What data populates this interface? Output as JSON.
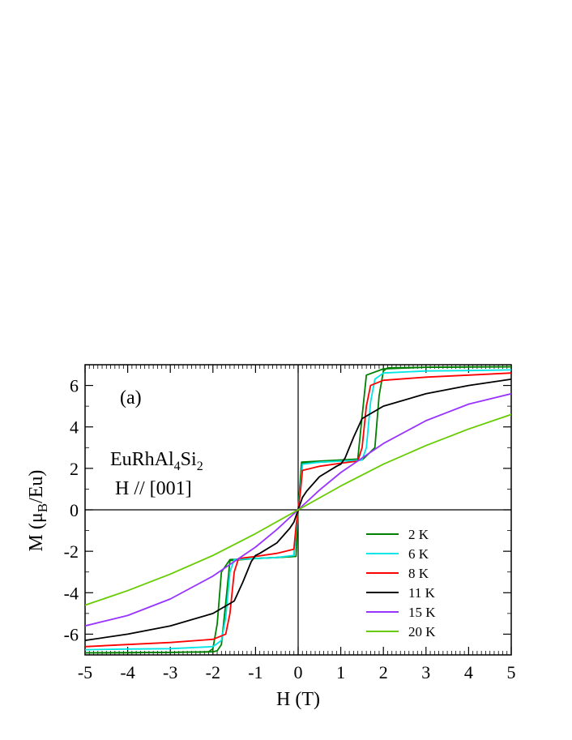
{
  "chart_data": {
    "type": "line",
    "panel_label": "(a)",
    "annotation": {
      "compound": {
        "base": "EuRhAl",
        "sub1": "4",
        "mid": "Si",
        "sub2": "2"
      },
      "field_direction": "H // [001]"
    },
    "xlabel": "H (T)",
    "ylabel": {
      "prefix": "M (μ",
      "sub": "B",
      "suffix": "/Eu)"
    },
    "xlim": [
      -5,
      5
    ],
    "ylim": [
      -7,
      7
    ],
    "xticks": [
      -5,
      -4,
      -3,
      -2,
      -1,
      0,
      1,
      2,
      3,
      4,
      5
    ],
    "yticks": [
      -6,
      -4,
      -2,
      0,
      2,
      4,
      6
    ],
    "zero_lines": true,
    "grid": false,
    "legend_position": "bottom-right",
    "series": [
      {
        "name": "2 K",
        "color": "#008000",
        "x": [
          -5,
          -4,
          -3,
          -2.1,
          -2.0,
          -1.9,
          -1.8,
          -1.6,
          -0.5,
          -0.1,
          -0.05,
          0,
          0.05,
          0.1,
          0.5,
          1.0,
          1.5,
          1.8,
          1.9,
          2.0,
          2.1,
          3,
          4,
          5
        ],
        "y": [
          -6.9,
          -6.9,
          -6.88,
          -6.85,
          -6.7,
          -5.5,
          -3.0,
          -2.4,
          -2.3,
          -2.25,
          -1.0,
          0,
          1.0,
          2.25,
          2.3,
          2.35,
          2.4,
          3.0,
          5.5,
          6.7,
          6.85,
          6.88,
          6.9,
          6.9
        ],
        "return_x": [
          5,
          3,
          2.0,
          1.6,
          1.5,
          1.4,
          0.5,
          0.08,
          0.0,
          -0.05,
          -0.5,
          -1.0,
          -1.6,
          -1.7,
          -1.8,
          -1.9,
          -2.0,
          -3,
          -5
        ],
        "return_y": [
          6.9,
          6.88,
          6.8,
          6.5,
          4.5,
          2.45,
          2.35,
          2.3,
          0,
          -2.25,
          -2.3,
          -2.35,
          -2.45,
          -4.5,
          -6.5,
          -6.8,
          -6.85,
          -6.88,
          -6.9
        ]
      },
      {
        "name": "6 K",
        "color": "#00e5e5",
        "x": [
          -5,
          -4,
          -3,
          -2,
          -1.8,
          -1.7,
          -1.6,
          -1.5,
          -1.0,
          -0.5,
          -0.1,
          -0.05,
          0,
          0.05,
          0.1,
          0.5,
          1.0,
          1.5,
          1.6,
          1.7,
          1.8,
          2,
          3,
          4,
          5
        ],
        "y": [
          -6.75,
          -6.72,
          -6.7,
          -6.6,
          -6.3,
          -5.2,
          -3.0,
          -2.4,
          -2.35,
          -2.3,
          -2.2,
          -1.0,
          0,
          1.0,
          2.2,
          2.3,
          2.35,
          2.4,
          3.0,
          5.2,
          6.3,
          6.6,
          6.7,
          6.72,
          6.75
        ]
      },
      {
        "name": "8 K",
        "color": "#ff0000",
        "x": [
          -5,
          -4,
          -3,
          -2,
          -1.7,
          -1.6,
          -1.5,
          -1.4,
          -1.0,
          -0.5,
          -0.1,
          -0.05,
          0,
          0.05,
          0.1,
          0.5,
          1.0,
          1.4,
          1.5,
          1.6,
          1.7,
          2,
          3,
          4,
          5
        ],
        "y": [
          -6.6,
          -6.5,
          -6.4,
          -6.25,
          -6.0,
          -5.0,
          -3.0,
          -2.35,
          -2.25,
          -2.1,
          -1.9,
          -0.8,
          0,
          0.8,
          1.9,
          2.1,
          2.25,
          2.35,
          3.0,
          5.0,
          6.0,
          6.25,
          6.4,
          6.5,
          6.6
        ]
      },
      {
        "name": "11 K",
        "color": "#000000",
        "x": [
          -5,
          -4,
          -3,
          -2,
          -1.5,
          -1.3,
          -1.1,
          -1.0,
          -0.9,
          -0.5,
          -0.2,
          -0.1,
          0,
          0.1,
          0.2,
          0.5,
          0.9,
          1.0,
          1.1,
          1.3,
          1.5,
          2,
          3,
          4,
          5
        ],
        "y": [
          -6.3,
          -6.0,
          -5.6,
          -5.0,
          -4.4,
          -3.5,
          -2.5,
          -2.2,
          -2.1,
          -1.6,
          -0.9,
          -0.6,
          0,
          0.6,
          0.9,
          1.6,
          2.1,
          2.2,
          2.5,
          3.5,
          4.4,
          5.0,
          5.6,
          6.0,
          6.3
        ]
      },
      {
        "name": "15 K",
        "color": "#9933ff",
        "x": [
          -5,
          -4,
          -3,
          -2,
          -1,
          -0.5,
          0,
          0.5,
          1,
          2,
          3,
          4,
          5
        ],
        "y": [
          -5.6,
          -5.1,
          -4.3,
          -3.2,
          -1.8,
          -0.95,
          0,
          0.95,
          1.8,
          3.2,
          4.3,
          5.1,
          5.6
        ]
      },
      {
        "name": "20 K",
        "color": "#66cc00",
        "x": [
          -5,
          -4,
          -3,
          -2,
          -1,
          0,
          1,
          2,
          3,
          4,
          5
        ],
        "y": [
          -4.6,
          -3.9,
          -3.1,
          -2.2,
          -1.15,
          0,
          1.15,
          2.2,
          3.1,
          3.9,
          4.6
        ]
      }
    ]
  }
}
